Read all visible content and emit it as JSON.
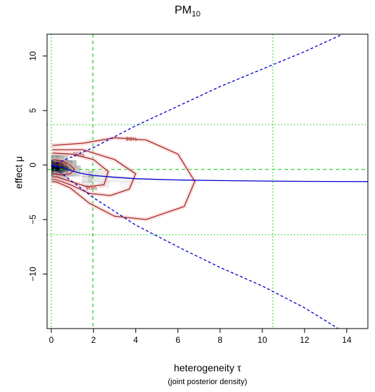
{
  "chart_data": {
    "type": "heatmap",
    "title": "PM",
    "title_subscript": "10",
    "xlabel": "heterogeneity τ",
    "xlabel_note": "(joint posterior density)",
    "ylabel": "effect μ",
    "xlim": [
      -0.2,
      15
    ],
    "ylim": [
      -15,
      12
    ],
    "xticks": [
      0,
      2,
      4,
      6,
      8,
      10,
      12,
      14
    ],
    "yticks": [
      -10,
      -5,
      0,
      5,
      10
    ],
    "density_cells": [
      {
        "tau": 0.1,
        "mu": 0.2,
        "v": 0.8
      },
      {
        "tau": 0.3,
        "mu": 0.2,
        "v": 0.9
      },
      {
        "tau": 0.5,
        "mu": 0.2,
        "v": 0.75
      },
      {
        "tau": 0.7,
        "mu": 0.2,
        "v": 0.55
      },
      {
        "tau": 0.9,
        "mu": 0.2,
        "v": 0.4
      },
      {
        "tau": 1.1,
        "mu": 0.2,
        "v": 0.25
      },
      {
        "tau": 0.1,
        "mu": -0.3,
        "v": 0.95
      },
      {
        "tau": 0.3,
        "mu": -0.3,
        "v": 1.0
      },
      {
        "tau": 0.5,
        "mu": -0.3,
        "v": 0.85
      },
      {
        "tau": 0.7,
        "mu": -0.3,
        "v": 0.7
      },
      {
        "tau": 0.9,
        "mu": -0.3,
        "v": 0.5
      },
      {
        "tau": 1.1,
        "mu": -0.3,
        "v": 0.35
      },
      {
        "tau": 1.3,
        "mu": -0.3,
        "v": 0.22
      },
      {
        "tau": 0.1,
        "mu": -0.8,
        "v": 0.6
      },
      {
        "tau": 0.3,
        "mu": -0.8,
        "v": 0.7
      },
      {
        "tau": 0.5,
        "mu": -0.8,
        "v": 0.6
      },
      {
        "tau": 0.7,
        "mu": -0.8,
        "v": 0.45
      },
      {
        "tau": 0.9,
        "mu": -0.8,
        "v": 0.32
      },
      {
        "tau": 1.1,
        "mu": -0.8,
        "v": 0.22
      },
      {
        "tau": 1.3,
        "mu": -0.8,
        "v": 0.16
      },
      {
        "tau": 0.1,
        "mu": 0.7,
        "v": 0.35
      },
      {
        "tau": 0.3,
        "mu": 0.7,
        "v": 0.4
      },
      {
        "tau": 0.5,
        "mu": 0.7,
        "v": 0.3
      },
      {
        "tau": 0.7,
        "mu": 0.7,
        "v": 0.2
      },
      {
        "tau": 0.1,
        "mu": -1.3,
        "v": 0.25
      },
      {
        "tau": 0.3,
        "mu": -1.3,
        "v": 0.3
      },
      {
        "tau": 0.5,
        "mu": -1.3,
        "v": 0.25
      },
      {
        "tau": 0.7,
        "mu": -1.3,
        "v": 0.18
      },
      {
        "tau": 1.7,
        "mu": -0.8,
        "v": 0.12
      },
      {
        "tau": 2.0,
        "mu": -0.8,
        "v": 0.1
      },
      {
        "tau": 2.5,
        "mu": -0.8,
        "v": 0.08
      },
      {
        "tau": 1.7,
        "mu": -1.3,
        "v": 0.1
      },
      {
        "tau": 2.0,
        "mu": -1.3,
        "v": 0.09
      },
      {
        "tau": 2.5,
        "mu": -1.3,
        "v": 0.07
      },
      {
        "tau": 3.0,
        "mu": -1.3,
        "v": 0.06
      },
      {
        "tau": 3.5,
        "mu": -1.3,
        "v": 0.05
      },
      {
        "tau": 4.0,
        "mu": -1.5,
        "v": 0.04
      },
      {
        "tau": 1.7,
        "mu": -1.8,
        "v": 0.08
      },
      {
        "tau": 2.5,
        "mu": -1.8,
        "v": 0.06
      },
      {
        "tau": 3.5,
        "mu": -1.8,
        "v": 0.04
      }
    ],
    "contours": [
      {
        "label": "50%",
        "points": [
          [
            0.1,
            0.5
          ],
          [
            0.5,
            0.4
          ],
          [
            0.9,
            0.0
          ],
          [
            1.1,
            -0.4
          ],
          [
            0.9,
            -0.8
          ],
          [
            0.5,
            -0.9
          ],
          [
            0.1,
            -0.8
          ]
        ]
      },
      {
        "label": "90%",
        "points": [
          [
            0.05,
            1.1
          ],
          [
            1.0,
            1.0
          ],
          [
            2.0,
            0.5
          ],
          [
            2.7,
            -0.6
          ],
          [
            2.5,
            -1.8
          ],
          [
            1.7,
            -2.0
          ],
          [
            0.9,
            -1.5
          ],
          [
            0.3,
            -1.1
          ],
          [
            0.05,
            -1.1
          ]
        ]
      },
      {
        "label": "95%",
        "points": [
          [
            0.05,
            1.4
          ],
          [
            1.5,
            1.4
          ],
          [
            3.0,
            0.5
          ],
          [
            4.0,
            -0.8
          ],
          [
            3.7,
            -2.2
          ],
          [
            2.8,
            -2.8
          ],
          [
            1.8,
            -2.6
          ],
          [
            0.9,
            -1.8
          ],
          [
            0.3,
            -1.4
          ],
          [
            0.05,
            -1.3
          ]
        ]
      },
      {
        "label": "99%",
        "points": [
          [
            0.05,
            1.8
          ],
          [
            1.5,
            2.0
          ],
          [
            3.0,
            2.5
          ],
          [
            4.5,
            2.3
          ],
          [
            6.0,
            1.0
          ],
          [
            6.8,
            -1.5
          ],
          [
            6.3,
            -3.8
          ],
          [
            4.5,
            -5.0
          ],
          [
            3.0,
            -4.7
          ],
          [
            1.8,
            -3.5
          ],
          [
            0.9,
            -2.1
          ],
          [
            0.3,
            -1.6
          ],
          [
            0.05,
            -1.5
          ]
        ]
      }
    ],
    "conditional_mean": [
      [
        0,
        -0.05
      ],
      [
        0.5,
        -0.2
      ],
      [
        1,
        -0.55
      ],
      [
        1.5,
        -0.8
      ],
      [
        2,
        -0.95
      ],
      [
        3,
        -1.12
      ],
      [
        4,
        -1.25
      ],
      [
        5,
        -1.32
      ],
      [
        6,
        -1.37
      ],
      [
        8,
        -1.43
      ],
      [
        10,
        -1.47
      ],
      [
        12,
        -1.5
      ],
      [
        15,
        -1.52
      ]
    ],
    "interval_upper": [
      [
        0,
        -0.05
      ],
      [
        2,
        1.6
      ],
      [
        4,
        3.6
      ],
      [
        6,
        5.4
      ],
      [
        8,
        7.2
      ],
      [
        10,
        8.8
      ],
      [
        12,
        10.4
      ],
      [
        13.8,
        12
      ]
    ],
    "interval_lower": [
      [
        0,
        -0.05
      ],
      [
        2,
        -3.0
      ],
      [
        4,
        -5.5
      ],
      [
        6,
        -7.5
      ],
      [
        8,
        -9.4
      ],
      [
        10,
        -11.1
      ],
      [
        12,
        -13.1
      ],
      [
        13.6,
        -15
      ]
    ],
    "vlines_tau": [
      0,
      1.97,
      10.5
    ],
    "hlines_mu": [
      3.7,
      -0.4,
      -6.4
    ],
    "colors": {
      "contour": "#a52a2a",
      "mean": "#0000cd",
      "interval": "#0000cd",
      "guide": "#22cc22",
      "density": "#000000"
    }
  }
}
